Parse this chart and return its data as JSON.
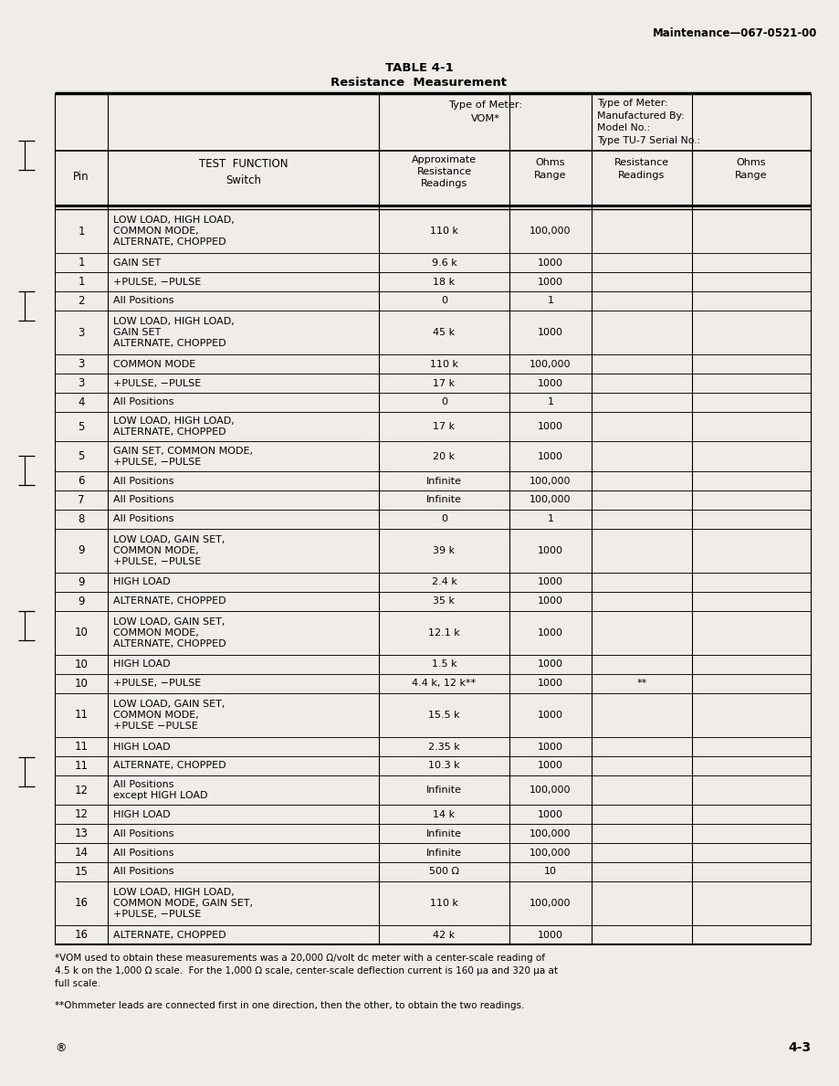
{
  "header_right": "Maintenance—067-0521-00",
  "title": "TABLE 4-1",
  "subtitle": "Resistance  Measurement",
  "meter_header_vom": "Type of Meter:\nVOM*",
  "meter_header_tu7": "Type of Meter:\nManufactured By:\nModel No.:\nType TU-7 Serial No.:",
  "col_pin": "Pin",
  "col_tf": "TEST  FUNCTION\nSwitch",
  "col_approx": "Approximate\nResistance\nReadings",
  "col_ohms_vom": "Ohms\nRange",
  "col_res_tu7": "Resistance\nReadings",
  "col_ohms_tu7": "Ohms\nRange",
  "rows": [
    {
      "pin": "1",
      "tf": "LOW LOAD, HIGH LOAD,\nCOMMON MODE,\nALTERNATE, CHOPPED",
      "approx": "110 k",
      "ohms": "100,000",
      "res2": "",
      "ohms2": ""
    },
    {
      "pin": "1",
      "tf": "GAIN SET",
      "approx": "9.6 k",
      "ohms": "1000",
      "res2": "",
      "ohms2": ""
    },
    {
      "pin": "1",
      "tf": "+PULSE, −PULSE",
      "approx": "18 k",
      "ohms": "1000",
      "res2": "",
      "ohms2": ""
    },
    {
      "pin": "2",
      "tf": "All Positions",
      "approx": "0",
      "ohms": "1",
      "res2": "",
      "ohms2": ""
    },
    {
      "pin": "3",
      "tf": "LOW LOAD, HIGH LOAD,\nGAIN SET\nALTERNATE, CHOPPED",
      "approx": "45 k",
      "ohms": "1000",
      "res2": "",
      "ohms2": ""
    },
    {
      "pin": "3",
      "tf": "COMMON MODE",
      "approx": "110 k",
      "ohms": "100,000",
      "res2": "",
      "ohms2": ""
    },
    {
      "pin": "3",
      "tf": "+PULSE, −PULSE",
      "approx": "17 k",
      "ohms": "1000",
      "res2": "",
      "ohms2": ""
    },
    {
      "pin": "4",
      "tf": "All Positions",
      "approx": "0",
      "ohms": "1",
      "res2": "",
      "ohms2": ""
    },
    {
      "pin": "5",
      "tf": "LOW LOAD, HIGH LOAD,\nALTERNATE, CHOPPED",
      "approx": "17 k",
      "ohms": "1000",
      "res2": "",
      "ohms2": ""
    },
    {
      "pin": "5",
      "tf": "GAIN SET, COMMON MODE,\n+PULSE, −PULSE",
      "approx": "20 k",
      "ohms": "1000",
      "res2": "",
      "ohms2": ""
    },
    {
      "pin": "6",
      "tf": "All Positions",
      "approx": "Infinite",
      "ohms": "100,000",
      "res2": "",
      "ohms2": ""
    },
    {
      "pin": "7",
      "tf": "All Positions",
      "approx": "Infinite",
      "ohms": "100,000",
      "res2": "",
      "ohms2": ""
    },
    {
      "pin": "8",
      "tf": "All Positions",
      "approx": "0",
      "ohms": "1",
      "res2": "",
      "ohms2": ""
    },
    {
      "pin": "9",
      "tf": "LOW LOAD, GAIN SET,\nCOMMON MODE,\n+PULSE, −PULSE",
      "approx": "39 k",
      "ohms": "1000",
      "res2": "",
      "ohms2": ""
    },
    {
      "pin": "9",
      "tf": "HIGH LOAD",
      "approx": "2.4 k",
      "ohms": "1000",
      "res2": "",
      "ohms2": ""
    },
    {
      "pin": "9",
      "tf": "ALTERNATE, CHOPPED",
      "approx": "35 k",
      "ohms": "1000",
      "res2": "",
      "ohms2": ""
    },
    {
      "pin": "10",
      "tf": "LOW LOAD, GAIN SET,\nCOMMON MODE,\nALTERNATE, CHOPPED",
      "approx": "12.1 k",
      "ohms": "1000",
      "res2": "",
      "ohms2": ""
    },
    {
      "pin": "10",
      "tf": "HIGH LOAD",
      "approx": "1.5 k",
      "ohms": "1000",
      "res2": "",
      "ohms2": ""
    },
    {
      "pin": "10",
      "tf": "+PULSE, −PULSE",
      "approx": "4.4 k, 12 k**",
      "ohms": "1000",
      "res2": "**",
      "ohms2": ""
    },
    {
      "pin": "11",
      "tf": "LOW LOAD, GAIN SET,\nCOMMON MODE,\n+PULSE −PULSE",
      "approx": "15.5 k",
      "ohms": "1000",
      "res2": "",
      "ohms2": ""
    },
    {
      "pin": "11",
      "tf": "HIGH LOAD",
      "approx": "2.35 k",
      "ohms": "1000",
      "res2": "",
      "ohms2": ""
    },
    {
      "pin": "11",
      "tf": "ALTERNATE, CHOPPED",
      "approx": "10.3 k",
      "ohms": "1000",
      "res2": "",
      "ohms2": ""
    },
    {
      "pin": "12",
      "tf": "All Positions\nexcept HIGH LOAD",
      "approx": "Infinite",
      "ohms": "100,000",
      "res2": "",
      "ohms2": ""
    },
    {
      "pin": "12",
      "tf": "HIGH LOAD",
      "approx": "14 k",
      "ohms": "1000",
      "res2": "",
      "ohms2": ""
    },
    {
      "pin": "13",
      "tf": "All Positions",
      "approx": "Infinite",
      "ohms": "100,000",
      "res2": "",
      "ohms2": ""
    },
    {
      "pin": "14",
      "tf": "All Positions",
      "approx": "Infinite",
      "ohms": "100,000",
      "res2": "",
      "ohms2": ""
    },
    {
      "pin": "15",
      "tf": "All Positions",
      "approx": "500 Ω",
      "ohms": "10",
      "res2": "",
      "ohms2": ""
    },
    {
      "pin": "16",
      "tf": "LOW LOAD, HIGH LOAD,\nCOMMON MODE, GAIN SET,\n+PULSE, −PULSE",
      "approx": "110 k",
      "ohms": "100,000",
      "res2": "",
      "ohms2": ""
    },
    {
      "pin": "16",
      "tf": "ALTERNATE, CHOPPED",
      "approx": "42 k",
      "ohms": "1000",
      "res2": "",
      "ohms2": ""
    }
  ],
  "footnote1": "*VOM used to obtain these measurements was a 20,000 Ω/volt dc meter with a center-scale reading of\n4.5 k on the 1,000 Ω scale.  For the 1,000 Ω scale, center-scale deflection current is 160 μa and 320 μa at\nfull scale.",
  "footnote2": "**Ohmmeter leads are connected first in one direction, then the other, to obtain the two readings.",
  "page_number": "4-3",
  "bg_color": "#f0ede8"
}
